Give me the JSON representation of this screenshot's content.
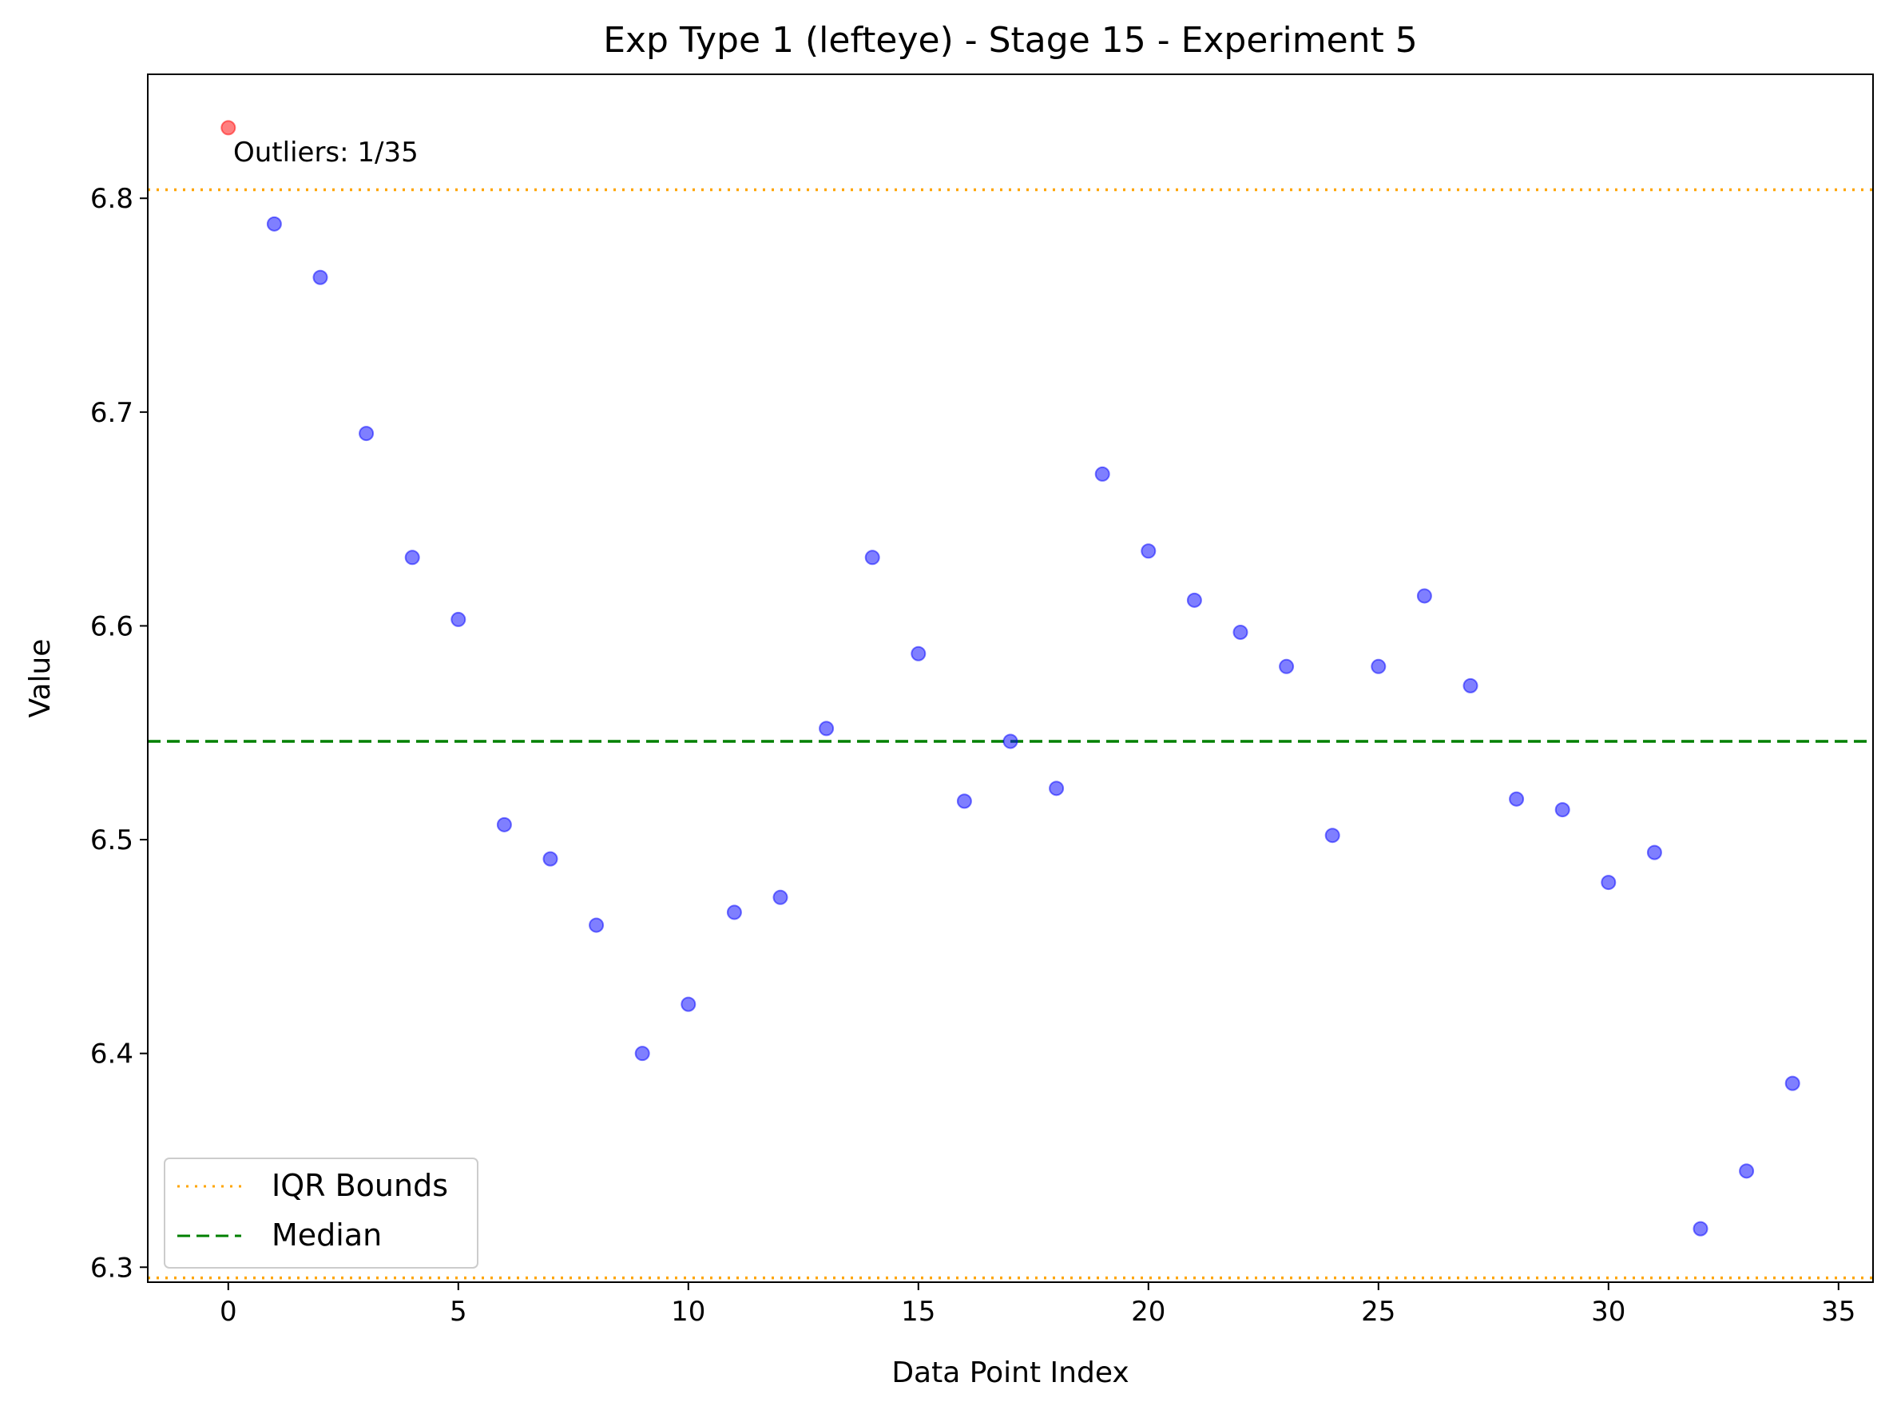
{
  "chart_data": {
    "type": "scatter",
    "title": "Exp Type 1 (lefteye) - Stage 15 - Experiment 5",
    "xlabel": "Data Point Index",
    "ylabel": "Value",
    "xlim": [
      -1.75,
      35.75
    ],
    "ylim": [
      6.293,
      6.858
    ],
    "xticks": [
      0,
      5,
      10,
      15,
      20,
      25,
      30,
      35
    ],
    "yticks": [
      6.3,
      6.4,
      6.5,
      6.6,
      6.7,
      6.8
    ],
    "ytick_labels": [
      "6.3",
      "6.4",
      "6.5",
      "6.6",
      "6.7",
      "6.8"
    ],
    "grid": false,
    "legend_position": "lower-left",
    "x": [
      0,
      1,
      2,
      3,
      4,
      5,
      6,
      7,
      8,
      9,
      10,
      11,
      12,
      13,
      14,
      15,
      16,
      17,
      18,
      19,
      20,
      21,
      22,
      23,
      24,
      25,
      26,
      27,
      28,
      29,
      30,
      31,
      32,
      33,
      34
    ],
    "y": [
      6.833,
      6.788,
      6.763,
      6.69,
      6.632,
      6.603,
      6.507,
      6.491,
      6.46,
      6.4,
      6.423,
      6.466,
      6.473,
      6.552,
      6.632,
      6.587,
      6.518,
      6.546,
      6.524,
      6.671,
      6.635,
      6.612,
      6.597,
      6.581,
      6.502,
      6.581,
      6.614,
      6.572,
      6.519,
      6.514,
      6.48,
      6.494,
      6.318,
      6.345,
      6.386
    ],
    "outlier_indices": [
      0
    ],
    "series": [
      {
        "name": "IQR Bounds",
        "style": "dotted",
        "color": "#ffa500",
        "values": [
          6.804,
          6.295
        ]
      },
      {
        "name": "Median",
        "style": "dashed",
        "color": "#008000",
        "values": [
          6.546
        ]
      }
    ],
    "point_color": "#0000ff",
    "outlier_color": "#ff0000",
    "annotation": "Outliers: 1/35"
  }
}
